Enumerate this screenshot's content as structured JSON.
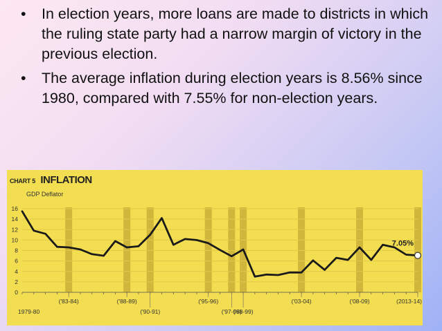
{
  "bullets": [
    {
      "symbol": "•",
      "text": "In election years, more loans are made to districts in which the ruling state party had a narrow margin of victory in the previous election."
    },
    {
      "symbol": "•",
      "text": "The average inflation during election years is 8.56% since 1980, compared with 7.55% for non-election years."
    }
  ],
  "colors": {
    "panel": "#f3dd50",
    "line": "#1a1a1a",
    "election_band": "#c4aa34",
    "grid": "#e2c949"
  },
  "chart_data": {
    "type": "line",
    "label": "CHART 5",
    "title": "INFLATION",
    "subtitle": "GDP Deflator",
    "x": [
      1980,
      1981,
      1982,
      1983,
      1984,
      1985,
      1986,
      1987,
      1988,
      1989,
      1990,
      1991,
      1992,
      1993,
      1994,
      1995,
      1996,
      1997,
      1998,
      1999,
      2000,
      2001,
      2002,
      2003,
      2004,
      2005,
      2006,
      2007,
      2008,
      2009,
      2010,
      2011,
      2012,
      2013,
      2014
    ],
    "values": [
      15.5,
      11.8,
      11.2,
      8.7,
      8.6,
      8.2,
      7.3,
      7.0,
      9.8,
      8.6,
      8.8,
      11.0,
      14.2,
      9.1,
      10.2,
      10.0,
      9.4,
      8.1,
      6.9,
      8.2,
      3.0,
      3.4,
      3.3,
      3.8,
      3.8,
      6.1,
      4.3,
      6.6,
      6.2,
      8.6,
      6.2,
      9.1,
      8.6,
      7.2,
      7.05
    ],
    "ylim": [
      0,
      16
    ],
    "y_ticks": [
      "0",
      "2",
      "4",
      "6",
      "8",
      "10",
      "12",
      "14",
      "16"
    ],
    "grid": true,
    "election_bands": [
      {
        "label": "('83-84)",
        "index": 4
      },
      {
        "label": "('88-89)",
        "index": 9
      },
      {
        "label": "('90-91)",
        "index": 11
      },
      {
        "label": "('95-96)",
        "index": 16
      },
      {
        "label": "('97-98)",
        "index": 18
      },
      {
        "label": "('98-99)",
        "index": 19
      },
      {
        "label": "('03-04)",
        "index": 24
      },
      {
        "label": "('08-09)",
        "index": 29
      },
      {
        "label": "(2013-14)",
        "index": 34
      }
    ],
    "x_start_label": "1979-80",
    "end_annotation": "7.05%"
  }
}
